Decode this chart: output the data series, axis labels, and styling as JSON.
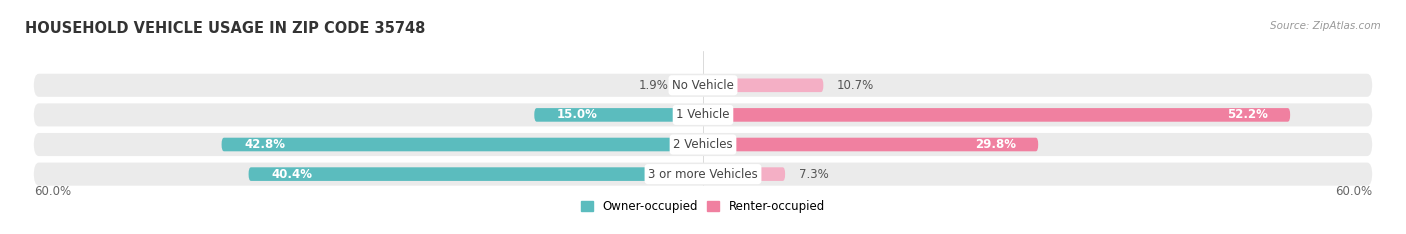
{
  "title": "HOUSEHOLD VEHICLE USAGE IN ZIP CODE 35748",
  "source": "Source: ZipAtlas.com",
  "categories": [
    "No Vehicle",
    "1 Vehicle",
    "2 Vehicles",
    "3 or more Vehicles"
  ],
  "owner_values": [
    1.9,
    15.0,
    42.8,
    40.4
  ],
  "renter_values": [
    10.7,
    52.2,
    29.8,
    7.3
  ],
  "owner_color": "#5bbcbe",
  "renter_color": "#f080a0",
  "renter_color_light": "#f4afc5",
  "bar_bg_color": "#ebebeb",
  "axis_max": 60.0,
  "legend_owner": "Owner-occupied",
  "legend_renter": "Renter-occupied",
  "x_tick_left": "60.0%",
  "x_tick_right": "60.0%",
  "title_fontsize": 10.5,
  "source_fontsize": 7.5,
  "label_fontsize": 8.5,
  "category_fontsize": 8.5
}
